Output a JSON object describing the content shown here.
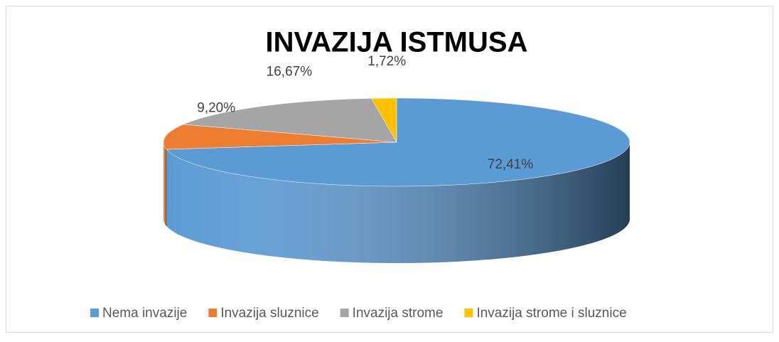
{
  "chart_data": {
    "type": "pie3d",
    "title": "INVAZIJA ISTMUSA",
    "categories": [
      "Nema invazije",
      "Invazija sluznice",
      "Invazija strome",
      "Invazija strome i sluznice"
    ],
    "values": [
      72.41,
      9.2,
      16.67,
      1.72
    ],
    "value_labels": [
      "72,41%",
      "9,20%",
      "16,67%",
      "1,72%"
    ],
    "colors": [
      "#5b9bd5",
      "#ed7d31",
      "#a5a5a5",
      "#ffc000"
    ],
    "legend": "bottom"
  }
}
